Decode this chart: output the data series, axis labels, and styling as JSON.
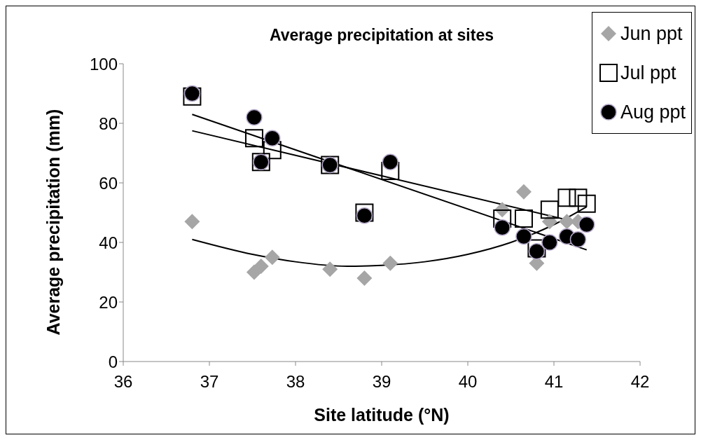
{
  "chart_data": {
    "type": "scatter",
    "title": "Average precipitation at sites",
    "xlabel": "Site latitude (°N)",
    "ylabel": "Average precipitation (mm)",
    "xlim": [
      36,
      42
    ],
    "xticks": [
      36,
      37,
      38,
      39,
      40,
      41,
      42
    ],
    "ylim": [
      0,
      100
    ],
    "yticks": [
      0,
      20,
      40,
      60,
      80,
      100
    ],
    "grid": false,
    "legend": "top right",
    "x": [
      36.8,
      37.52,
      37.6,
      37.73,
      38.4,
      38.8,
      39.1,
      40.4,
      40.65,
      40.8,
      40.95,
      41.15,
      41.28,
      41.38
    ],
    "series": [
      {
        "name": "Jun ppt",
        "color": "#a6a6a6",
        "marker": "diamond",
        "values": [
          47,
          30,
          32,
          35,
          31,
          28,
          33,
          51,
          57,
          33,
          47,
          47,
          47,
          null
        ]
      },
      {
        "name": "Jul ppt",
        "color": "#000000",
        "marker": "square",
        "values": [
          89,
          75,
          67,
          71,
          66,
          50,
          64,
          48,
          48,
          38,
          51,
          55,
          55,
          53
        ]
      },
      {
        "name": "Aug ppt",
        "color": "#000000",
        "marker": "circle",
        "values": [
          90,
          82,
          67,
          75,
          66,
          49,
          67,
          45,
          42,
          37,
          40,
          42,
          41,
          46
        ]
      },
      {
        "type": "line",
        "color": "#000000",
        "x": [
          36.8,
          37.5,
          38,
          38.6,
          39,
          39.5,
          40,
          40.5,
          41,
          41.38
        ],
        "values": [
          41,
          36,
          33.5,
          32,
          32.3,
          33.5,
          36,
          40,
          46,
          52
        ]
      },
      {
        "type": "line",
        "color": "#000000",
        "x": [
          36.8,
          41.38
        ],
        "values": [
          77.5,
          46
        ]
      },
      {
        "type": "line",
        "color": "#000000",
        "x": [
          36.8,
          41.38
        ],
        "values": [
          83,
          37.5
        ]
      }
    ]
  }
}
